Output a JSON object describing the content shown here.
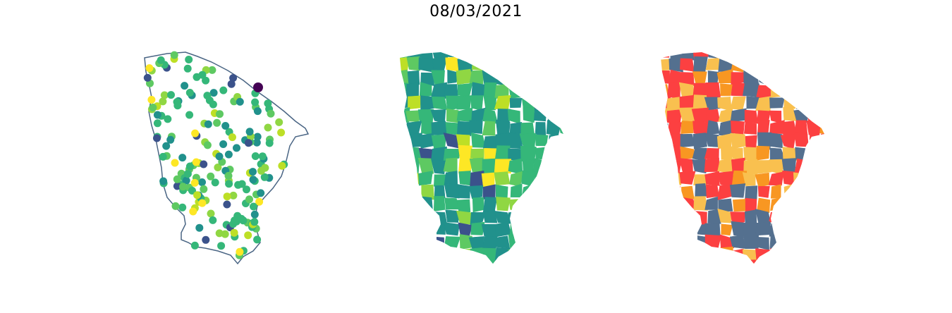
{
  "figure": {
    "title": "08/03/2021"
  },
  "panels": [
    {
      "name": "points",
      "style": "scatter markers over state outline"
    },
    {
      "name": "continuous",
      "style": "municipalities colored with viridis scale"
    },
    {
      "name": "categorical",
      "style": "municipalities colored by 4 categories"
    }
  ],
  "colors": {
    "outline": "#4a6584",
    "viridis": [
      "#440154",
      "#3b528b",
      "#21918c",
      "#2c728e",
      "#35b779",
      "#5ec962",
      "#90d743",
      "#bddf26",
      "#fde725"
    ],
    "categories": [
      "#fc4041",
      "#54708f",
      "#f89722",
      "#f9c04f"
    ]
  }
}
